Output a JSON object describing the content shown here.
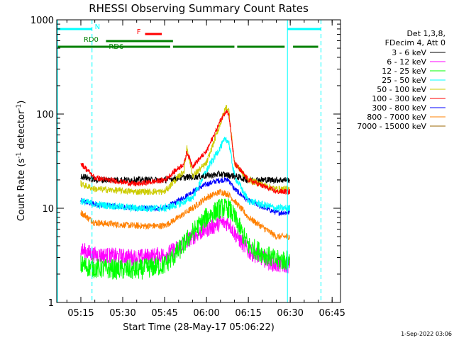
{
  "chart_data": {
    "type": "line",
    "title": "RHESSI Observing Summary Count Rates",
    "xlabel": "Start Time (28-May-17 05:06:22)",
    "ylabel": "Count Rate (s⁻¹ detector⁻¹)",
    "ylabel_main": "Count Rate (s",
    "ylabel_sup1": "-1",
    "ylabel_mid": " detector",
    "ylabel_sup2": "-1",
    "ylabel_end": ")",
    "y_scale": "log",
    "ylim": [
      1,
      1000
    ],
    "xlim": [
      "05:06:22",
      "06:48:00"
    ],
    "x_ticks": [
      "05:15",
      "05:30",
      "05:45",
      "06:00",
      "06:15",
      "06:30",
      "06:45"
    ],
    "y_ticks": [
      "1",
      "10",
      "100",
      "1000"
    ],
    "timestamp": "1-Sep-2022 03:06",
    "legend_placement": "right",
    "legend_header": [
      "Det 1,3,8,",
      "FDecim 4, Att 0"
    ],
    "series": [
      {
        "name": "3 - 6 keV",
        "color": "#000000",
        "x": [
          "05:15",
          "05:20",
          "05:35",
          "05:45",
          "05:50",
          "06:00",
          "06:05",
          "06:10",
          "06:15",
          "06:25",
          "06:30"
        ],
        "y": [
          22,
          20,
          20,
          20,
          21,
          22,
          23,
          22,
          20,
          20,
          20
        ]
      },
      {
        "name": "6 - 12 keV",
        "color": "#ff00ff",
        "x": [
          "05:15",
          "05:20",
          "05:35",
          "05:45",
          "05:50",
          "05:55",
          "06:00",
          "06:05",
          "06:08",
          "06:10",
          "06:15",
          "06:25",
          "06:30"
        ],
        "y": [
          3.6,
          3.2,
          3.0,
          3.2,
          3.8,
          5.0,
          6.0,
          7.0,
          7.0,
          5.5,
          3.5,
          2.5,
          2.5
        ]
      },
      {
        "name": "12 - 25 keV",
        "color": "#00ff00",
        "x": [
          "05:15",
          "05:20",
          "05:35",
          "05:45",
          "05:50",
          "05:55",
          "06:00",
          "06:05",
          "06:08",
          "06:10",
          "06:15",
          "06:25",
          "06:30"
        ],
        "y": [
          2.5,
          2.3,
          2.2,
          2.5,
          3.5,
          5.5,
          8.0,
          10.0,
          10.0,
          8.0,
          4.0,
          2.8,
          2.8
        ]
      },
      {
        "name": "25 - 50 keV",
        "color": "#00ffff",
        "x": [
          "05:15",
          "05:20",
          "05:35",
          "05:45",
          "05:50",
          "05:55",
          "06:00",
          "06:05",
          "06:07",
          "06:08",
          "06:10",
          "06:15",
          "06:25",
          "06:30"
        ],
        "y": [
          12,
          11,
          10,
          10,
          11,
          13,
          25,
          45,
          55,
          50,
          22,
          12,
          10,
          10
        ]
      },
      {
        "name": "50 - 100 keV",
        "color": "#cccc00",
        "x": [
          "05:15",
          "05:20",
          "05:35",
          "05:45",
          "05:52",
          "05:53",
          "05:55",
          "06:00",
          "06:05",
          "06:07",
          "06:08",
          "06:10",
          "06:15",
          "06:25",
          "06:30"
        ],
        "y": [
          18,
          16,
          15,
          15,
          25,
          45,
          22,
          30,
          80,
          120,
          110,
          30,
          20,
          16,
          16
        ]
      },
      {
        "name": "100 - 300 keV",
        "color": "#ff0000",
        "x": [
          "05:15",
          "05:20",
          "05:35",
          "05:45",
          "05:52",
          "05:53",
          "05:55",
          "06:00",
          "06:05",
          "06:07",
          "06:08",
          "06:10",
          "06:15",
          "06:25",
          "06:30"
        ],
        "y": [
          30,
          21,
          18,
          20,
          30,
          40,
          28,
          40,
          85,
          110,
          100,
          30,
          20,
          15,
          15
        ]
      },
      {
        "name": "300 - 800 keV",
        "color": "#0000ff",
        "x": [
          "05:15",
          "05:20",
          "05:35",
          "05:45",
          "05:50",
          "05:55",
          "06:00",
          "06:05",
          "06:08",
          "06:10",
          "06:15",
          "06:25",
          "06:30"
        ],
        "y": [
          12,
          11,
          10,
          10,
          12,
          15,
          18,
          20,
          20,
          16,
          12,
          9,
          9
        ]
      },
      {
        "name": "800 - 7000 keV",
        "color": "#ff8000",
        "x": [
          "05:15",
          "05:20",
          "05:35",
          "05:45",
          "05:50",
          "05:55",
          "06:00",
          "06:05",
          "06:08",
          "06:10",
          "06:15",
          "06:25",
          "06:30"
        ],
        "y": [
          9,
          7,
          6.5,
          6.5,
          8,
          10,
          13,
          15,
          14,
          12,
          8,
          5,
          5
        ]
      },
      {
        "name": "7000 - 15000 keV",
        "color": "#996600",
        "x": [],
        "y": []
      }
    ],
    "flags": [
      {
        "label": "N",
        "color": "#00ffff",
        "segments": [
          [
            "05:06:22",
            "05:19:00"
          ],
          [
            "06:29:00",
            "06:41:00"
          ]
        ]
      },
      {
        "label": "F",
        "color": "#ff0000",
        "segments": [
          [
            "05:38:00",
            "05:44:00"
          ]
        ]
      },
      {
        "label": "RD0",
        "color": "#008000",
        "segments": [
          [
            "05:24:00",
            "05:48:00"
          ]
        ]
      },
      {
        "label": "RD6",
        "color": "#008000",
        "segments": [
          [
            "05:06:22",
            "05:47:00"
          ],
          [
            "05:48:00",
            "06:10:00"
          ],
          [
            "06:11:00",
            "06:28:00"
          ],
          [
            "06:31:00",
            "06:40:00"
          ]
        ]
      }
    ],
    "saa_markers": {
      "solid": [
        "06:29:00"
      ],
      "dashed": [
        "05:19:00",
        "06:41:00"
      ]
    },
    "grid": false
  }
}
